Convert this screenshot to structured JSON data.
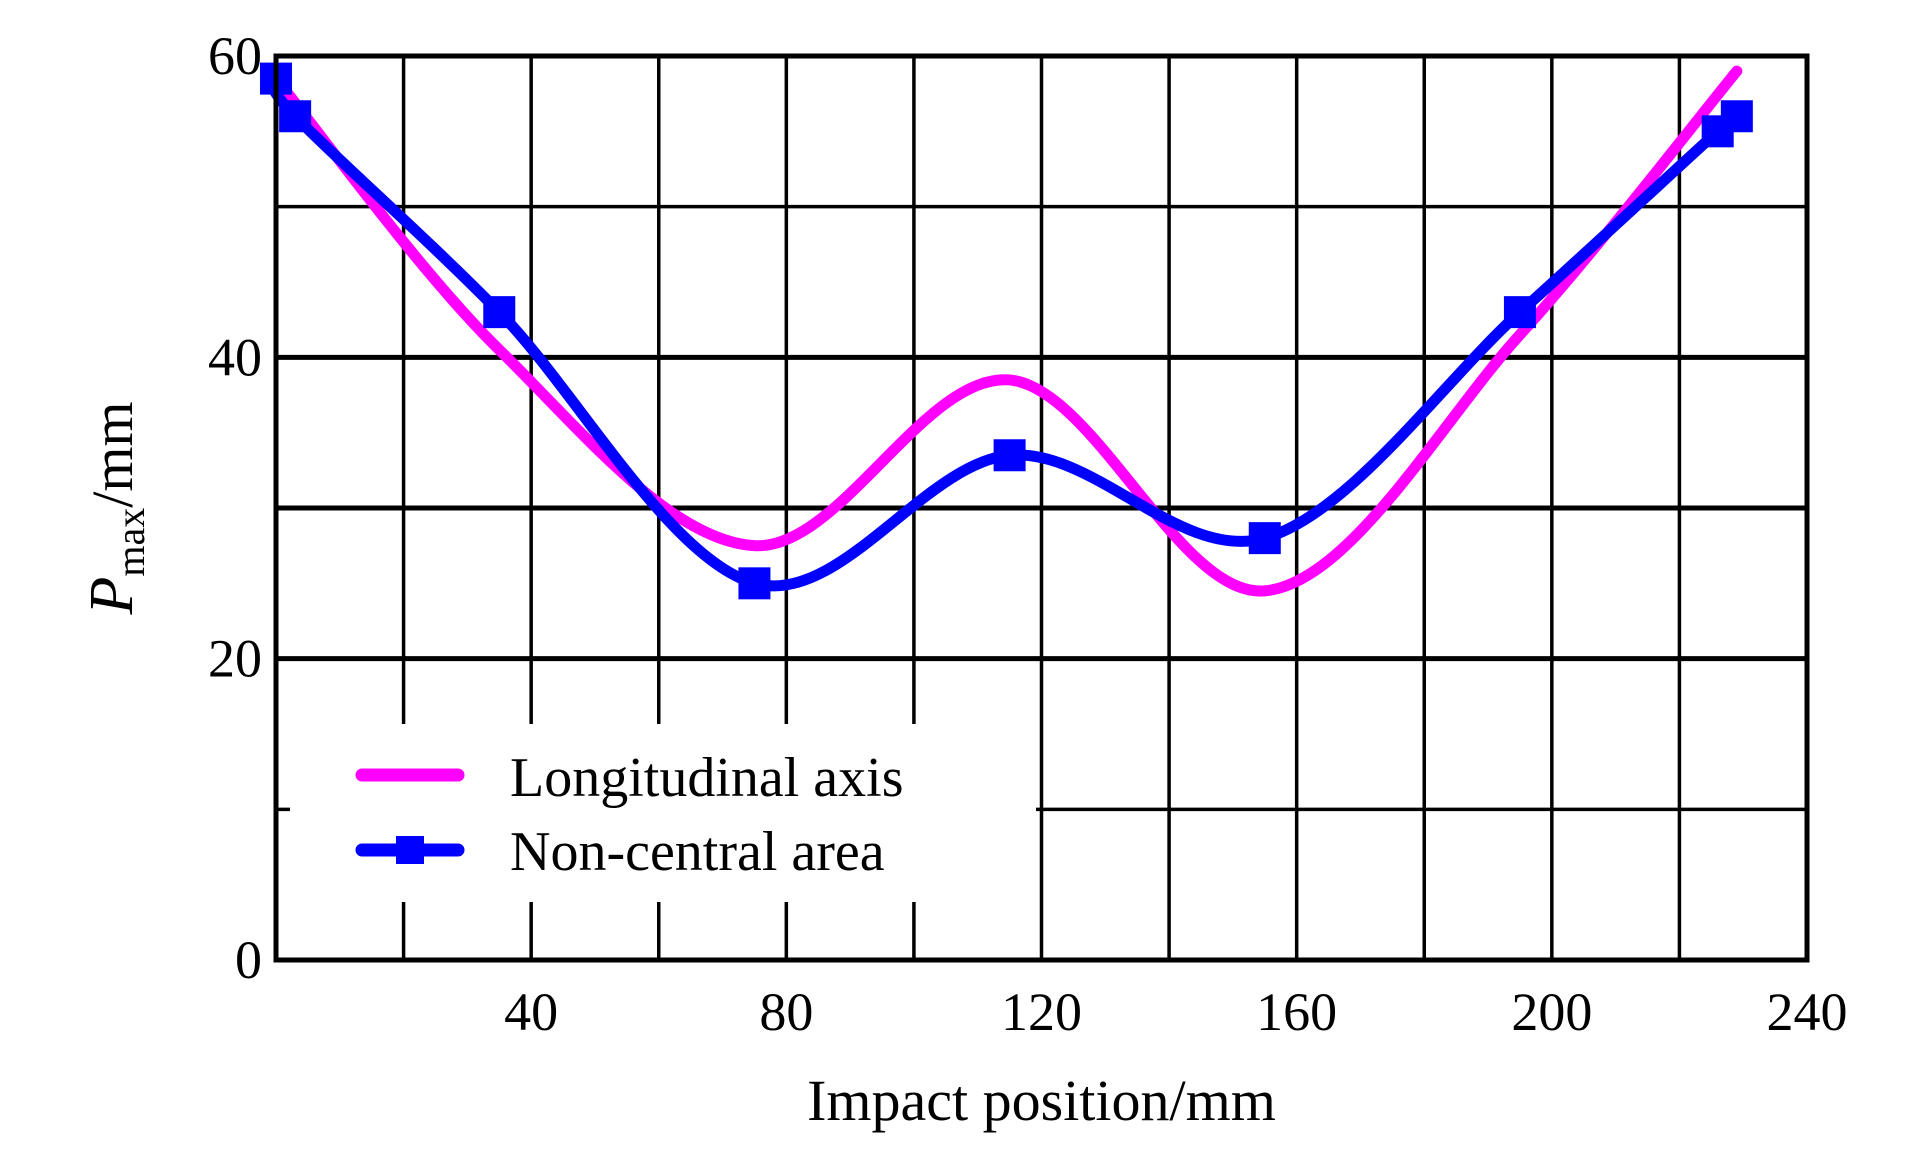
{
  "chart_data": {
    "type": "line",
    "title": "",
    "xlabel": "Impact position/mm",
    "ylabel": {
      "main": "P",
      "sub": "max",
      "suffix": "/mm"
    },
    "xlim": [
      0,
      240
    ],
    "ylim": [
      0,
      60
    ],
    "xticks": [
      40,
      80,
      120,
      160,
      200,
      240
    ],
    "yticks": [
      0,
      20,
      40,
      60
    ],
    "grid": true,
    "legend_position": "lower-left",
    "series": [
      {
        "name": "Longitudinal axis",
        "color": "#ff00ff",
        "marker": "none",
        "x": [
          0,
          35,
          75,
          115,
          155,
          195,
          229
        ],
        "y": [
          58.5,
          40.5,
          27.5,
          38.5,
          24.5,
          41.5,
          59
        ]
      },
      {
        "name": "Non-central area",
        "color": "#0000ff",
        "marker": "square",
        "x": [
          0,
          3,
          35,
          75,
          115,
          155,
          195,
          226,
          229
        ],
        "y": [
          58.5,
          56,
          43,
          25,
          33.5,
          28,
          43,
          55,
          56
        ]
      }
    ]
  }
}
